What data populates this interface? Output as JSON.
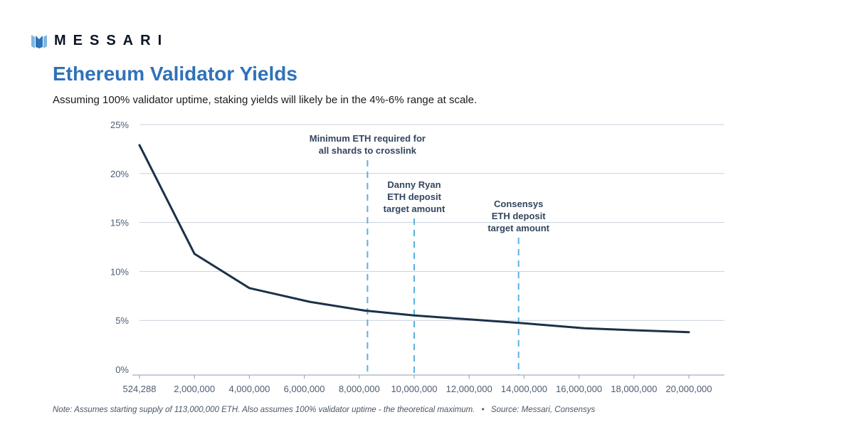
{
  "brand": {
    "name": "MESSARI"
  },
  "colors": {
    "accent": "#2f72b8",
    "line": "#1b3149",
    "annotation": "#5ab2e0",
    "grid": "#c9d1dc",
    "axis": "#4d5d72"
  },
  "header": {
    "title": "Ethereum Validator Yields",
    "subtitle": "Assuming 100% validator uptime, staking yields will likely be in the 4%-6% range at scale."
  },
  "footer": {
    "note": "Note: Assumes starting supply of 113,000,000 ETH. Also assumes 100% validator uptime - the theoretical maximum.",
    "separator": "•",
    "source": "Source: Messari, Consensys"
  },
  "chart_data": {
    "type": "line",
    "title": "Ethereum Validator Yields",
    "xlabel": "",
    "ylabel": "",
    "x_categories": [
      "524,288",
      "2,000,000",
      "4,000,000",
      "6,000,000",
      "8,000,000",
      "10,000,000",
      "12,000,000",
      "14,000,000",
      "16,000,000",
      "18,000,000",
      "20,000,000"
    ],
    "x_values": [
      524288,
      2000000,
      4000000,
      6000000,
      8000000,
      10000000,
      12000000,
      14000000,
      16000000,
      18000000,
      20000000
    ],
    "y_ticks": [
      "0%",
      "5%",
      "10%",
      "15%",
      "20%",
      "25%"
    ],
    "y_tick_values": [
      0,
      5,
      10,
      15,
      20,
      25
    ],
    "ylim": [
      0,
      25
    ],
    "grid": true,
    "legend": "none",
    "series": [
      {
        "x": [
          524288,
          2000000,
          4000000,
          6200000,
          8200000,
          10000000,
          12000000,
          14000000,
          16200000,
          18000000,
          20000000
        ],
        "values": [
          22.9,
          11.8,
          8.3,
          6.9,
          6.0,
          5.5,
          5.1,
          4.7,
          4.2,
          4.0,
          3.8
        ]
      }
    ],
    "annotations": [
      {
        "x": 8300000,
        "lines": [
          "Minimum ETH required for",
          "all shards to crosslink"
        ]
      },
      {
        "x": 10000000,
        "lines": [
          "Danny Ryan",
          "ETH deposit",
          "target amount"
        ]
      },
      {
        "x": 13800000,
        "lines": [
          "Consensys",
          "ETH deposit",
          "target amount"
        ]
      }
    ]
  }
}
